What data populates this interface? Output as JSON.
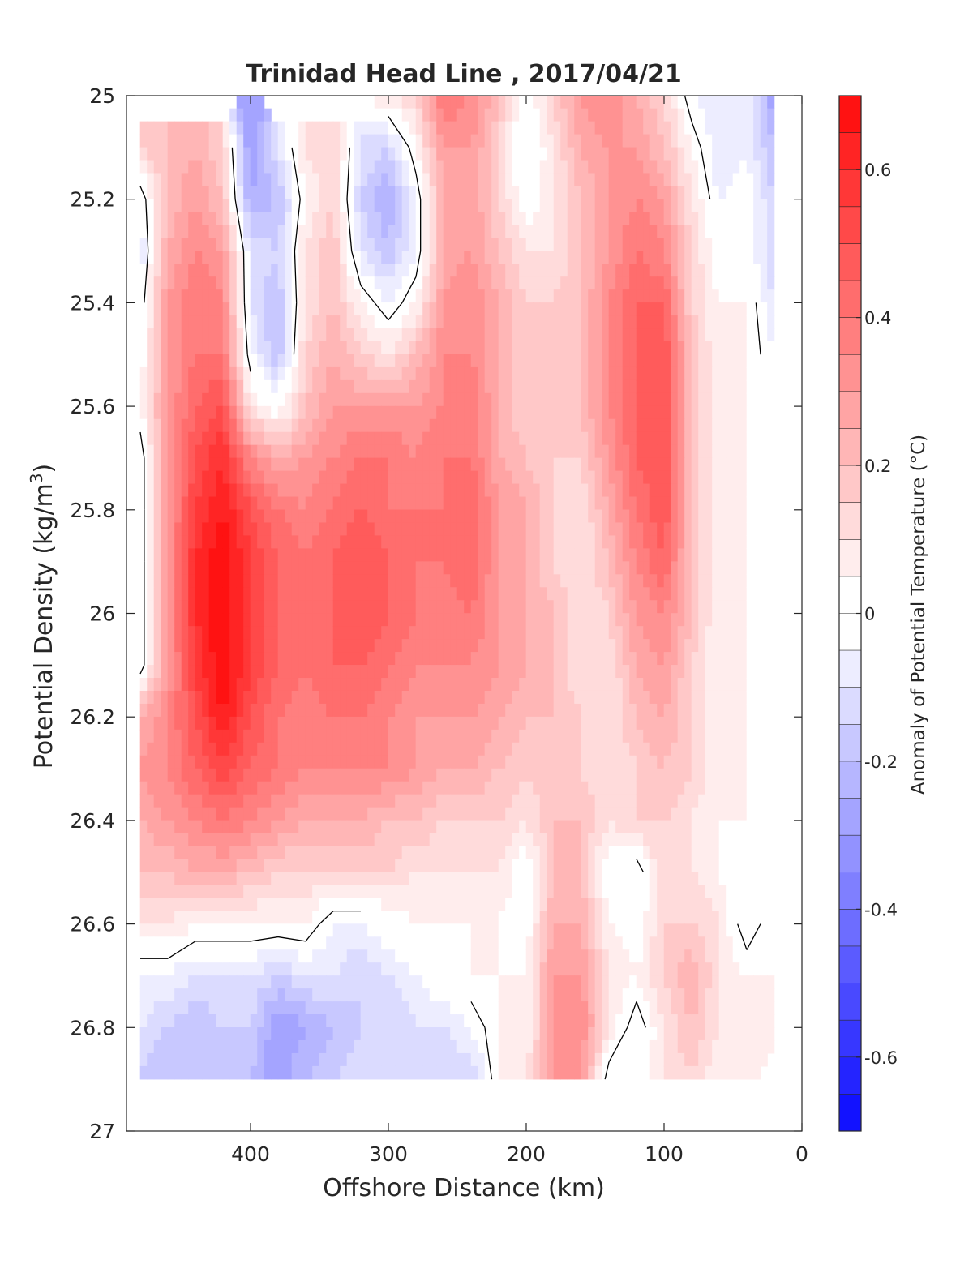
{
  "chart_data": {
    "type": "heatmap",
    "title": "Trinidad Head Line , 2017/04/21",
    "xlabel": "Offshore Distance (km)",
    "ylabel": "Potential Density (kg/m",
    "ylabel_superscript": "3",
    "ylabel_close": ")",
    "colorbar_label": "Anomaly of Potential Temperature (°C)",
    "xlim": [
      490,
      0
    ],
    "ylim": [
      27,
      25
    ],
    "x_reversed": true,
    "y_reversed": true,
    "x_ticks": [
      400,
      300,
      200,
      100,
      0
    ],
    "y_ticks": [
      25,
      25.2,
      25.4,
      25.6,
      25.8,
      26,
      26.2,
      26.4,
      26.6,
      26.8,
      27
    ],
    "colorbar_range": [
      -0.7,
      0.7
    ],
    "colorbar_ticks": [
      0.6,
      0.4,
      0.2,
      0,
      -0.2,
      -0.4,
      -0.6
    ],
    "contour_levels_step": 0.05,
    "black_contour_level": 0,
    "colormap": {
      "negative": "#0000ff",
      "zero": "#ffffff",
      "positive": "#ff0000"
    },
    "x": [
      480,
      460,
      440,
      420,
      400,
      380,
      360,
      340,
      320,
      300,
      280,
      260,
      240,
      220,
      200,
      180,
      160,
      140,
      120,
      100,
      80,
      60,
      40,
      20
    ],
    "y": [
      25.0,
      25.1,
      25.2,
      25.3,
      25.4,
      25.5,
      25.6,
      25.7,
      25.8,
      25.9,
      26.0,
      26.1,
      26.2,
      26.3,
      26.4,
      26.5,
      26.6,
      26.7,
      26.8,
      26.9
    ],
    "z": [
      [
        null,
        null,
        null,
        null,
        -0.3,
        null,
        null,
        null,
        null,
        0.1,
        0.15,
        0.4,
        0.35,
        0.2,
        0.0,
        0.15,
        0.3,
        0.35,
        0.25,
        0.15,
        -0.05,
        -0.1,
        -0.05,
        -0.3
      ],
      [
        0.15,
        0.2,
        0.25,
        0.15,
        -0.3,
        -0.1,
        0.1,
        0.15,
        -0.1,
        -0.15,
        0.05,
        0.3,
        0.3,
        0.15,
        -0.05,
        0.1,
        0.25,
        0.3,
        0.3,
        0.2,
        0.05,
        -0.1,
        -0.05,
        -0.2
      ],
      [
        -0.05,
        0.2,
        0.3,
        0.2,
        -0.25,
        -0.2,
        0.05,
        0.15,
        -0.15,
        -0.25,
        -0.05,
        0.25,
        0.3,
        0.15,
        0.0,
        0.1,
        0.2,
        0.3,
        0.35,
        0.3,
        0.1,
        -0.05,
        0.0,
        -0.15
      ],
      [
        -0.1,
        0.25,
        0.35,
        0.3,
        -0.1,
        -0.15,
        0.1,
        0.2,
        -0.1,
        -0.2,
        -0.05,
        0.25,
        0.3,
        0.2,
        0.1,
        0.1,
        0.2,
        0.3,
        0.4,
        0.35,
        0.15,
        0.0,
        0.0,
        -0.15
      ],
      [
        -0.05,
        0.3,
        0.4,
        0.35,
        -0.1,
        -0.2,
        0.1,
        0.2,
        0.05,
        -0.05,
        0.05,
        0.3,
        0.35,
        0.25,
        0.15,
        0.15,
        0.2,
        0.35,
        0.45,
        0.45,
        0.15,
        0.05,
        0.05,
        -0.1
      ],
      [
        0.0,
        0.3,
        0.4,
        0.4,
        -0.05,
        -0.2,
        0.15,
        0.25,
        0.15,
        0.1,
        0.2,
        0.35,
        0.35,
        0.25,
        0.15,
        0.15,
        0.2,
        0.35,
        0.45,
        0.5,
        0.2,
        0.05,
        0.05,
        -0.05
      ],
      [
        0.05,
        0.3,
        0.45,
        0.5,
        0.1,
        0.0,
        0.2,
        0.3,
        0.3,
        0.3,
        0.3,
        0.35,
        0.4,
        0.25,
        0.15,
        0.15,
        0.2,
        0.35,
        0.45,
        0.5,
        0.2,
        0.05,
        0.05,
        0.0
      ],
      [
        -0.05,
        0.3,
        0.5,
        0.6,
        0.35,
        0.25,
        0.3,
        0.35,
        0.4,
        0.4,
        0.35,
        0.4,
        0.4,
        0.25,
        0.2,
        0.15,
        0.15,
        0.3,
        0.45,
        0.5,
        0.2,
        0.05,
        0.05,
        -0.05
      ],
      [
        -0.05,
        0.3,
        0.55,
        0.65,
        0.5,
        0.4,
        0.35,
        0.4,
        0.45,
        0.4,
        0.4,
        0.4,
        0.45,
        0.3,
        0.25,
        0.15,
        0.1,
        0.25,
        0.4,
        0.5,
        0.2,
        0.05,
        0.05,
        0.0
      ],
      [
        -0.05,
        0.3,
        0.6,
        0.7,
        0.55,
        0.45,
        0.4,
        0.45,
        0.5,
        0.45,
        0.4,
        0.4,
        0.45,
        0.3,
        0.25,
        0.15,
        0.1,
        0.2,
        0.35,
        0.45,
        0.2,
        0.05,
        0.05,
        0.0
      ],
      [
        -0.05,
        0.3,
        0.6,
        0.7,
        0.55,
        0.45,
        0.4,
        0.45,
        0.5,
        0.45,
        0.4,
        0.35,
        0.4,
        0.3,
        0.25,
        0.2,
        0.1,
        0.15,
        0.3,
        0.35,
        0.2,
        0.05,
        0.05,
        0.0
      ],
      [
        -0.05,
        0.3,
        0.55,
        0.7,
        0.55,
        0.45,
        0.4,
        0.45,
        0.45,
        0.4,
        0.35,
        0.35,
        0.35,
        0.3,
        0.25,
        0.2,
        0.1,
        0.1,
        0.25,
        0.3,
        0.15,
        0.05,
        0.05,
        0.0
      ],
      [
        0.25,
        0.35,
        0.5,
        0.65,
        0.5,
        0.4,
        0.35,
        0.4,
        0.4,
        0.35,
        0.3,
        0.3,
        0.3,
        0.25,
        0.2,
        0.2,
        0.15,
        0.1,
        0.2,
        0.25,
        0.15,
        0.05,
        0.05,
        0.0
      ],
      [
        0.3,
        0.35,
        0.45,
        0.55,
        0.45,
        0.4,
        0.35,
        0.35,
        0.35,
        0.35,
        0.3,
        0.25,
        0.25,
        0.2,
        0.15,
        0.2,
        0.15,
        0.1,
        0.15,
        0.2,
        0.15,
        0.05,
        0.05,
        0.0
      ],
      [
        0.25,
        0.3,
        0.35,
        0.4,
        0.35,
        0.3,
        0.25,
        0.25,
        0.25,
        0.2,
        0.2,
        0.15,
        0.15,
        0.15,
        0.1,
        0.2,
        0.2,
        0.1,
        0.15,
        0.15,
        0.1,
        0.05,
        0.05,
        0.0
      ],
      [
        0.2,
        0.2,
        0.25,
        0.25,
        0.2,
        0.15,
        0.15,
        0.15,
        0.15,
        0.15,
        0.1,
        0.1,
        0.1,
        0.1,
        0.0,
        0.2,
        0.2,
        0.0,
        -0.05,
        0.15,
        0.1,
        0.05,
        0.0,
        0.05
      ],
      [
        0.1,
        0.1,
        0.05,
        0.05,
        0.05,
        0.05,
        0.05,
        -0.05,
        -0.05,
        0.0,
        0.05,
        0.05,
        0.05,
        0.05,
        0.0,
        0.25,
        0.25,
        0.05,
        0.0,
        0.15,
        0.15,
        0.1,
        -0.05,
        0.05
      ],
      [
        -0.05,
        -0.05,
        -0.1,
        -0.1,
        -0.1,
        -0.15,
        -0.1,
        -0.1,
        -0.15,
        -0.1,
        -0.05,
        0.0,
        0.05,
        0.05,
        0.05,
        0.3,
        0.3,
        0.1,
        0.05,
        0.15,
        0.25,
        0.1,
        0.05,
        0.05
      ],
      [
        -0.1,
        -0.15,
        -0.2,
        -0.15,
        -0.15,
        -0.3,
        -0.25,
        -0.2,
        -0.15,
        -0.15,
        -0.1,
        -0.1,
        -0.05,
        0.05,
        0.05,
        0.3,
        0.35,
        0.1,
        -0.05,
        0.1,
        0.2,
        0.1,
        0.05,
        0.05
      ],
      [
        -0.15,
        -0.2,
        -0.2,
        -0.2,
        -0.2,
        -0.3,
        -0.2,
        -0.15,
        -0.1,
        -0.1,
        -0.1,
        -0.15,
        -0.15,
        0.05,
        0.1,
        0.3,
        0.3,
        -0.05,
        0.0,
        0.1,
        0.15,
        0.05,
        0.05,
        null
      ]
    ]
  }
}
